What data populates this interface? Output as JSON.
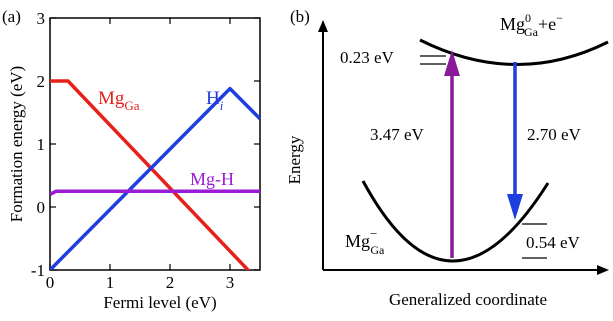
{
  "panel_a": {
    "label": "(a)",
    "ylabel": "Formation energy (eV)",
    "xlabel": "Fermi level (eV)"
  },
  "panel_b": {
    "label": "(b)",
    "ylabel": "Energy",
    "xlabel": "Generalized coordinate",
    "labels": {
      "upper_state_main": "Mg",
      "upper_state_sup": "0",
      "upper_state_sub": "Ga",
      "upper_state_suffix": "+e",
      "upper_state_electron_sup": "−",
      "lower_state_main": "Mg",
      "lower_state_sup": "−",
      "lower_state_sub": "Ga",
      "left_offset": "0.23 eV",
      "right_offset": "0.54 eV",
      "absorption": "3.47 eV",
      "emission": "2.70 eV"
    }
  },
  "chart_data": [
    {
      "type": "line",
      "x_ticks": [
        0,
        1,
        2,
        3
      ],
      "y_ticks": [
        -1,
        0,
        1,
        2,
        3
      ],
      "xlim": [
        0,
        3.5
      ],
      "ylim": [
        -1,
        3
      ],
      "grid": false,
      "series": [
        {
          "name": "Mg",
          "name_sub": "Ga",
          "color": "#e8201c",
          "x": [
            0,
            0.3,
            3.5
          ],
          "y": [
            2.0,
            2.0,
            -1.2
          ]
        },
        {
          "name": "H",
          "name_sub": "i",
          "color": "#1f3ee0",
          "x": [
            0,
            3.0,
            3.5
          ],
          "y": [
            -1.0,
            1.88,
            1.4
          ]
        },
        {
          "name": "Mg-H",
          "color": "#9a1ad6",
          "x": [
            0,
            0.1,
            3.5
          ],
          "y": [
            0.2,
            0.25,
            0.25
          ]
        }
      ]
    }
  ]
}
